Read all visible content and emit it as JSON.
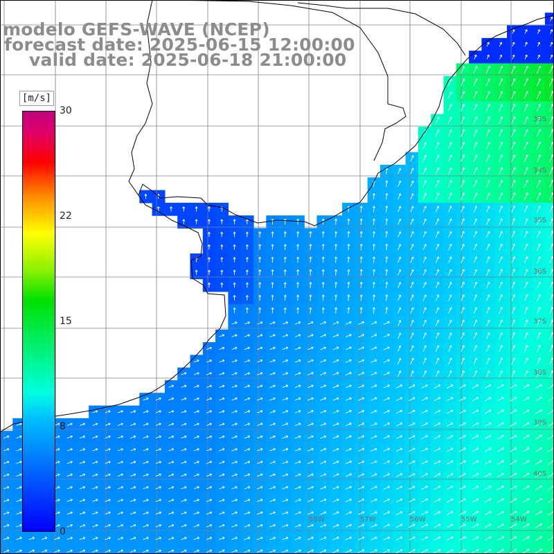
{
  "title": {
    "line1": "modelo GEFS-WAVE (NCEP)",
    "line2": "forecast date: 2025-06-15 12:00:00",
    "line3": "valid date: 2025-06-18 21:00:00"
  },
  "colorbar": {
    "unit": "[m/s]",
    "ticks": [
      "30",
      "22",
      "15",
      "8",
      "0"
    ],
    "tick_values": [
      30,
      22,
      15,
      8,
      0
    ],
    "range": [
      0,
      30
    ],
    "colors": [
      "#0000ff",
      "#00c0ff",
      "#00ffe0",
      "#00e000",
      "#88f000",
      "#ffff00",
      "#ff8800",
      "#ff0000",
      "#e0006a",
      "#c00080"
    ]
  },
  "grid": {
    "lat_labels": [
      "33S",
      "34S",
      "35S",
      "36S",
      "37S",
      "38S",
      "39S",
      "40S"
    ],
    "lon_labels": [
      "58W",
      "57W",
      "56W",
      "55W",
      "54W"
    ]
  },
  "map_colors": {
    "land": "#ffffff",
    "coastline": "#000000",
    "gridline": "#808080",
    "arrow": "#ffffff",
    "title_text": "#8c8c8c"
  }
}
